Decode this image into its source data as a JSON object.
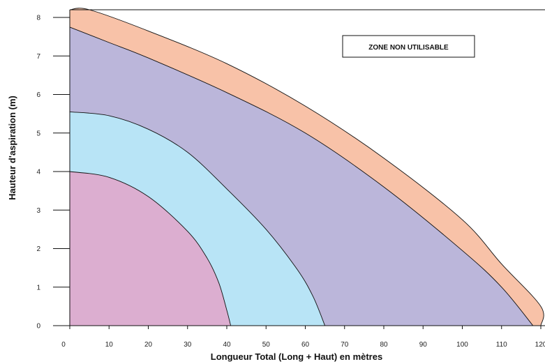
{
  "chart_data": {
    "type": "area",
    "xlabel": "Longueur Total (Long + Haut) en mètres",
    "ylabel": "Hauteur d'aspiration (m)",
    "xlim": [
      0,
      120
    ],
    "ylim": [
      0,
      8.2
    ],
    "x_ticks": [
      0,
      10,
      20,
      30,
      40,
      50,
      60,
      70,
      80,
      90,
      100,
      110,
      120
    ],
    "y_ticks": [
      0,
      1,
      2,
      3,
      4,
      5,
      6,
      7,
      8
    ],
    "grid": false,
    "annotations": [
      {
        "text": "ZONE NON UTILISABLE"
      }
    ],
    "zones": [
      {
        "color": "#f8c2a8",
        "boundary": [
          [
            0,
            8.2
          ],
          [
            5,
            8.2
          ],
          [
            20,
            7.65
          ],
          [
            40,
            6.8
          ],
          [
            60,
            5.7
          ],
          [
            80,
            4.35
          ],
          [
            100,
            2.75
          ],
          [
            110,
            1.6
          ],
          [
            120,
            0.5
          ],
          [
            120,
            0
          ]
        ]
      },
      {
        "color": "#bbb6da",
        "boundary": [
          [
            0,
            7.75
          ],
          [
            10,
            7.35
          ],
          [
            20,
            6.95
          ],
          [
            40,
            6.05
          ],
          [
            60,
            5.0
          ],
          [
            80,
            3.6
          ],
          [
            100,
            1.95
          ],
          [
            110,
            1.0
          ],
          [
            118,
            0
          ]
        ]
      },
      {
        "color": "#b8e4f6",
        "boundary": [
          [
            0,
            5.55
          ],
          [
            10,
            5.45
          ],
          [
            20,
            5.1
          ],
          [
            30,
            4.5
          ],
          [
            40,
            3.55
          ],
          [
            50,
            2.5
          ],
          [
            58,
            1.45
          ],
          [
            62,
            0.75
          ],
          [
            65,
            0
          ]
        ]
      },
      {
        "color": "#dcaed0",
        "boundary": [
          [
            0,
            4.0
          ],
          [
            10,
            3.85
          ],
          [
            20,
            3.35
          ],
          [
            30,
            2.45
          ],
          [
            35,
            1.75
          ],
          [
            38,
            1.1
          ],
          [
            40,
            0.4
          ],
          [
            41,
            0
          ]
        ]
      }
    ]
  }
}
